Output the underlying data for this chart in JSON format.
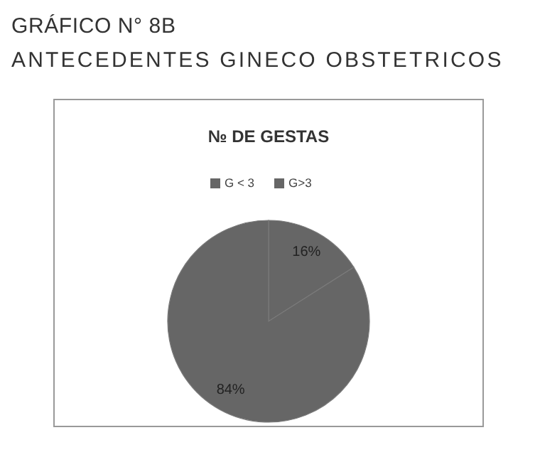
{
  "chart_data": {
    "type": "pie",
    "title": "GRÁFICO N° 8B",
    "subtitle": "ANTECEDENTES GINECO OBSTETRICOS",
    "annotations": [
      "№ DE GESTAS"
    ],
    "categories": [
      "G < 3",
      "G>3"
    ],
    "values": [
      16,
      84
    ],
    "colors": [
      "#666666",
      "#666666"
    ],
    "value_labels": [
      "16%",
      "84%"
    ],
    "legend": "top"
  }
}
